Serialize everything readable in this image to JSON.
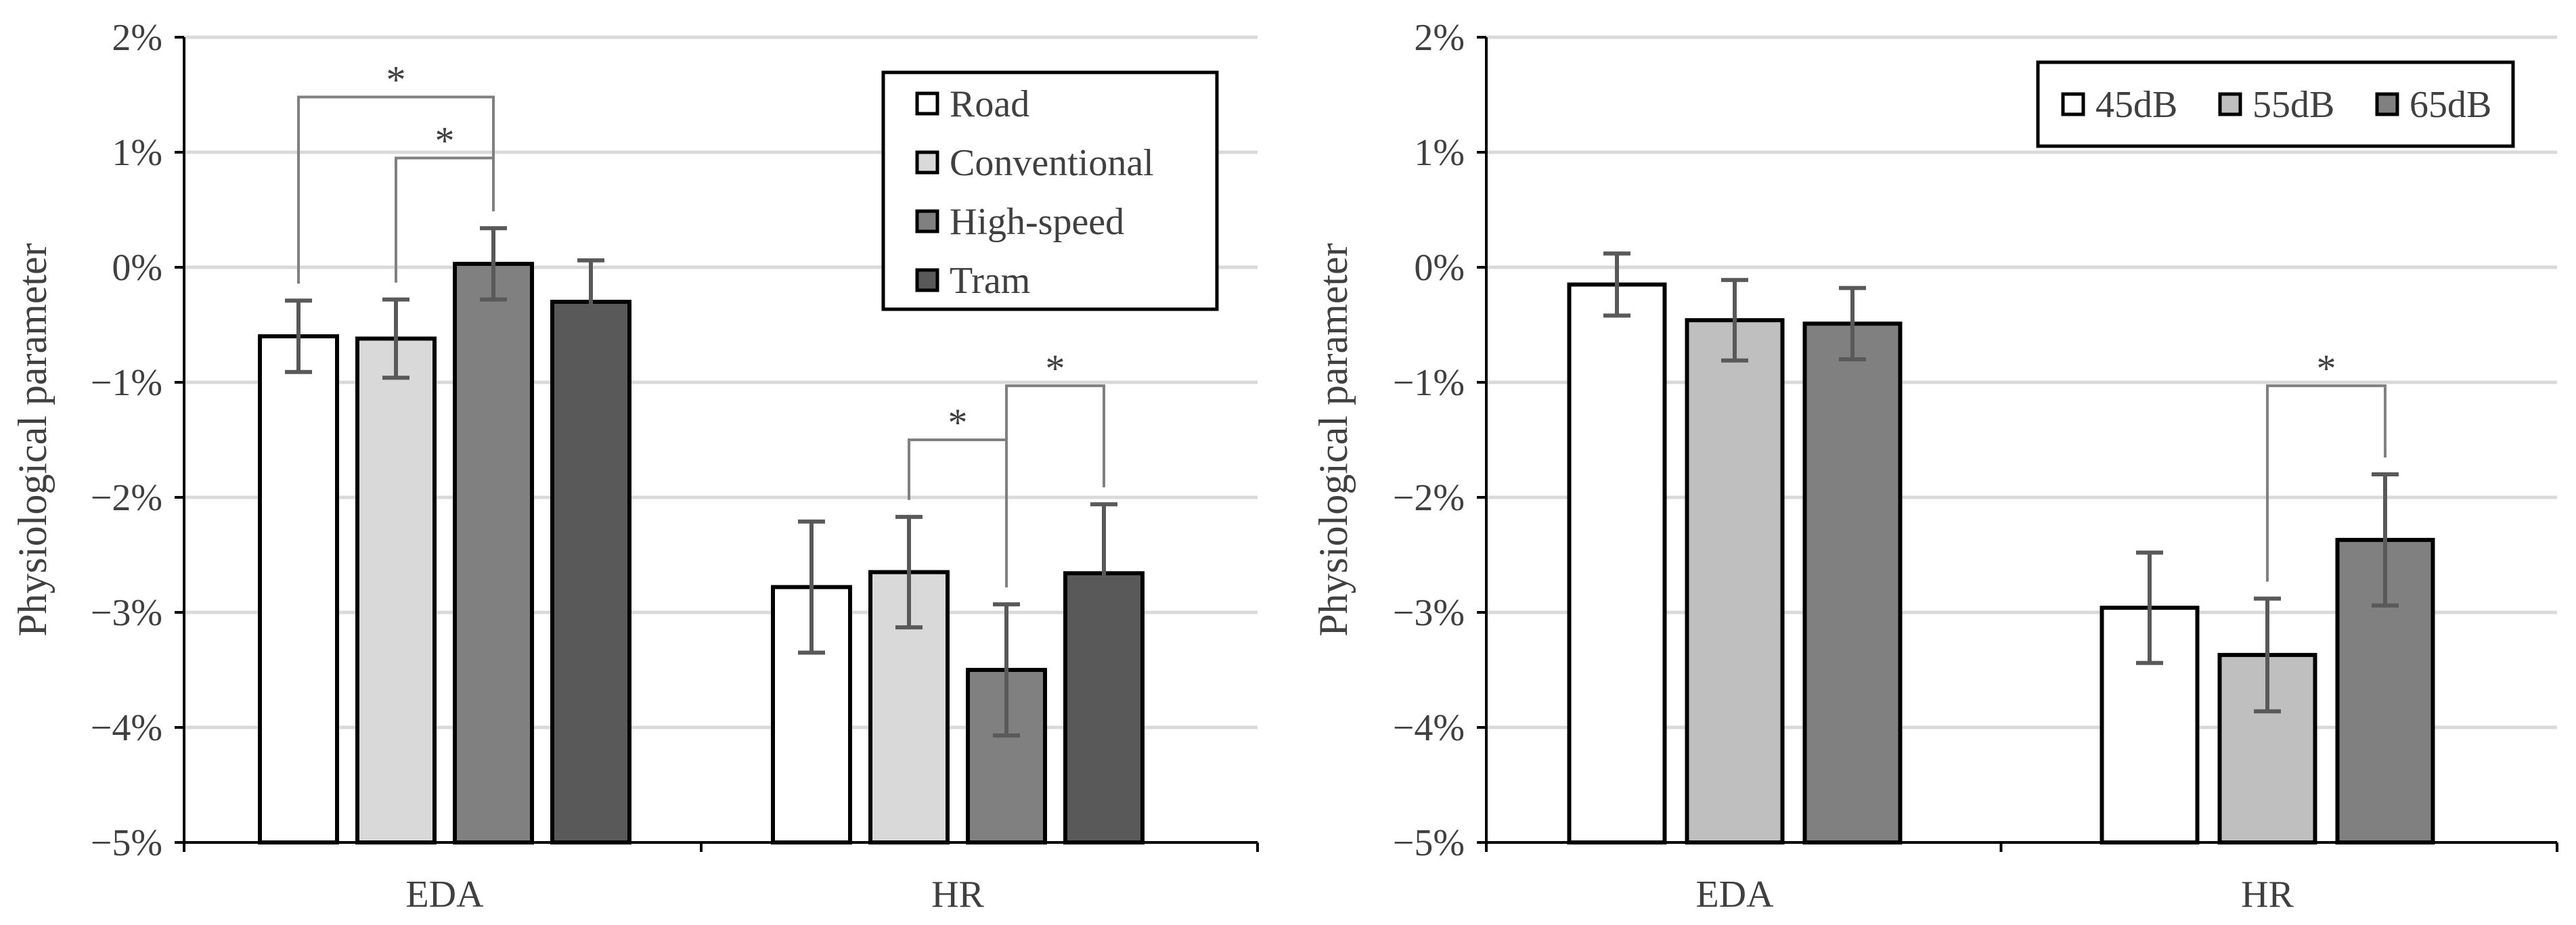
{
  "chart_data": [
    {
      "type": "bar",
      "ylabel": "Physiological parameter",
      "categories": [
        "EDA",
        "HR"
      ],
      "ylim": [
        -5,
        2
      ],
      "yticks": [
        2,
        1,
        0,
        -1,
        -2,
        -3,
        -4,
        -5
      ],
      "ytick_labels": [
        "2%",
        "1%",
        "0%",
        "−1%",
        "−2%",
        "−3%",
        "−4%",
        "−5%"
      ],
      "grid": true,
      "legend_position": "top-right",
      "series": [
        {
          "name": "Road",
          "color": "#ffffff",
          "values": [
            -0.6,
            -2.78
          ],
          "errors": [
            0.31,
            0.57
          ]
        },
        {
          "name": "Conventional",
          "color": "#d9d9d9",
          "values": [
            -0.62,
            -2.65
          ],
          "errors": [
            0.34,
            0.48
          ]
        },
        {
          "name": "High-speed",
          "color": "#808080",
          "values": [
            0.03,
            -3.5
          ],
          "errors": [
            0.31,
            0.57
          ]
        },
        {
          "name": "Tram",
          "color": "#595959",
          "values": [
            -0.3,
            -2.66
          ],
          "errors": [
            0.36,
            0.6
          ]
        }
      ],
      "significance": [
        {
          "category": "EDA",
          "from": "Road",
          "to": "High-speed",
          "label": "*",
          "level": 1.48
        },
        {
          "category": "EDA",
          "from": "Conventional",
          "to": "High-speed",
          "label": "*",
          "level": 0.95
        },
        {
          "category": "HR",
          "from": "Conventional",
          "to": "High-speed",
          "label": "*",
          "level": -1.5
        },
        {
          "category": "HR",
          "from": "High-speed",
          "to": "Tram",
          "label": "*",
          "level": -1.03
        }
      ]
    },
    {
      "type": "bar",
      "ylabel": "Physiological parameter",
      "categories": [
        "EDA",
        "HR"
      ],
      "ylim": [
        -5,
        2
      ],
      "yticks": [
        2,
        1,
        0,
        -1,
        -2,
        -3,
        -4,
        -5
      ],
      "ytick_labels": [
        "2%",
        "1%",
        "0%",
        "−1%",
        "−2%",
        "−3%",
        "−4%",
        "−5%"
      ],
      "grid": true,
      "legend_position": "top-right",
      "series": [
        {
          "name": "45dB",
          "color": "#ffffff",
          "values": [
            -0.15,
            -2.96
          ],
          "errors": [
            0.27,
            0.48
          ]
        },
        {
          "name": "55dB",
          "color": "#bfbfbf",
          "values": [
            -0.46,
            -3.37
          ],
          "errors": [
            0.35,
            0.49
          ]
        },
        {
          "name": "65dB",
          "color": "#808080",
          "values": [
            -0.49,
            -2.37
          ],
          "errors": [
            0.31,
            0.57
          ]
        }
      ],
      "significance": [
        {
          "category": "HR",
          "from": "55dB",
          "to": "65dB",
          "label": "*",
          "level": -1.03
        }
      ]
    }
  ]
}
